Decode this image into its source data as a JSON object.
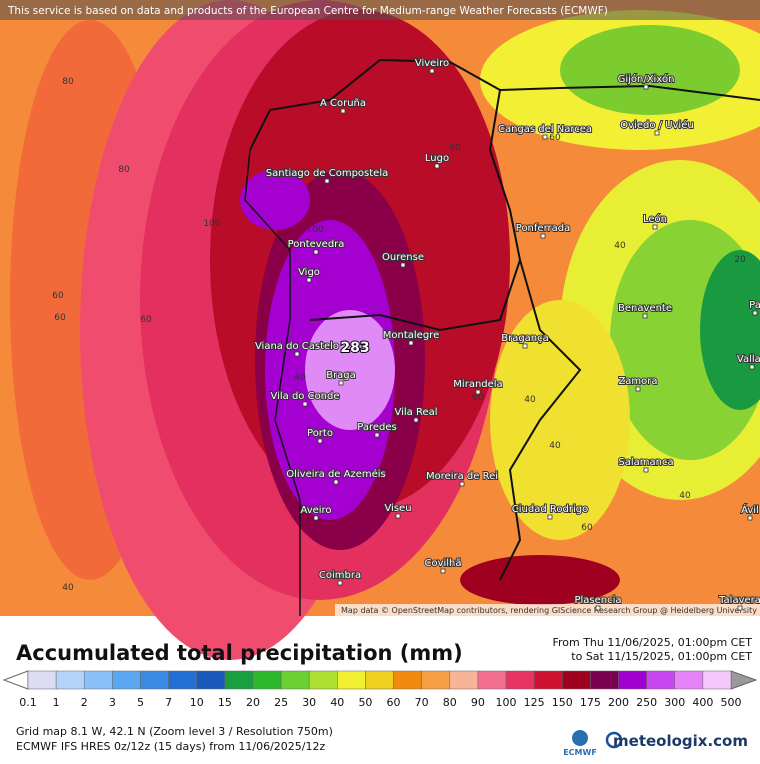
{
  "header": {
    "notice": "This service is based on data and products of the European Centre for Medium-range Weather Forecasts (ECMWF)"
  },
  "map": {
    "credit": "Map data © OpenStreetMap contributors, rendering GIScience Research Group @ Heidelberg University",
    "cities": [
      "Viveiro",
      "Gijón/Xixón",
      "A Coruña",
      "Cangas del Narcea",
      "Oviedo / Uviéu",
      "Santiago de Compostela",
      "Lugo",
      "León",
      "Pontevedra",
      "Ponferrada",
      "Vigo",
      "Ourense",
      "Benavente",
      "Viana do Castelo",
      "Montalegre",
      "Bragança",
      "Vallad",
      "Braga",
      "Zamora",
      "Mirandela",
      "Vila do Conde",
      "Vila Real",
      "Porto",
      "Paredes",
      "Salamanca",
      "Oliveira de Azeméis",
      "Moreira de Rei",
      "Aveiro",
      "Viseu",
      "Ciudad Rodrigo",
      "Ávil",
      "Covilhã",
      "Coimbra",
      "Plasencia",
      "Talavera",
      "Pa"
    ],
    "contours": [
      80,
      80,
      100,
      60,
      60,
      40,
      60,
      80,
      100,
      40,
      20,
      40,
      40,
      40,
      60,
      60,
      40,
      60
    ],
    "max_label": 283
  },
  "footer": {
    "title": "Accumulated total precipitation (mm)",
    "from": "From Thu 11/06/2025, 01:00pm CET",
    "to": "to Sat 11/15/2025, 01:00pm CET",
    "legend": {
      "values": [
        0.1,
        1,
        2,
        3,
        5,
        7,
        10,
        15,
        20,
        25,
        30,
        40,
        50,
        60,
        70,
        80,
        90,
        100,
        125,
        150,
        175,
        200,
        250,
        300,
        400,
        500
      ],
      "colors": [
        "#dcdcf4",
        "#b4d2fa",
        "#8cc0f8",
        "#5aa6f0",
        "#3a8ae4",
        "#2270d4",
        "#1a58bc",
        "#18a040",
        "#2eb82e",
        "#6cd032",
        "#aee032",
        "#f2f032",
        "#f0d020",
        "#f28a12",
        "#f8a046",
        "#f8b496",
        "#f47092",
        "#e83462",
        "#d01232",
        "#a00020",
        "#7a0050",
        "#a000d0",
        "#c846f0",
        "#e484f8",
        "#f4c8fa"
      ]
    },
    "grid_info": "Grid map 8.1 W, 42.1 N (Zoom level 3 / Resolution 750m)",
    "model_info": "ECMWF IFS HRES 0z/12z (15 days) from 11/06/2025/12z",
    "ecmwf": "ECMWF",
    "brand": "meteologix.com"
  }
}
